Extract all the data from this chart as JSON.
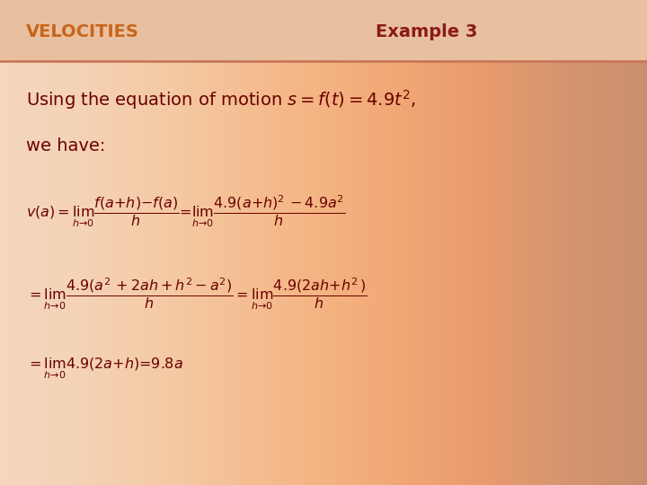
{
  "background_color_bottom": "#f0c8a8",
  "header_line_color": "#c8775a",
  "header_left_text": "VELOCITIES",
  "header_right_text": "Example 3",
  "header_text_color": "#8B1A1A",
  "header_bg_color": "#e8c0a0",
  "main_text_color": "#6B0000",
  "velocities_color": "#C8651A",
  "intro_line1": "Using the equation of motion $s = f(t) = 4.9t^2$,",
  "intro_line2": "we have:",
  "eq1": "$v(a) = \\lim_{h \\to 0} \\dfrac{f(a+h) - f(a)}{h} = \\lim_{h \\to 0} \\dfrac{4.9(a+h)^2 - 4.9a^2}{h}$",
  "eq2": "$= \\lim_{h \\to 0} \\dfrac{4.9(a^2 + 2ah + h^2 - a^2)}{h} = \\lim_{h \\to 0} \\dfrac{4.9(2ah + h^2)}{h}$",
  "eq3": "$= \\lim_{h \\to 0} 4.9(2a + h) = 9.8a$",
  "figsize": [
    7.2,
    5.4
  ],
  "dpi": 100
}
